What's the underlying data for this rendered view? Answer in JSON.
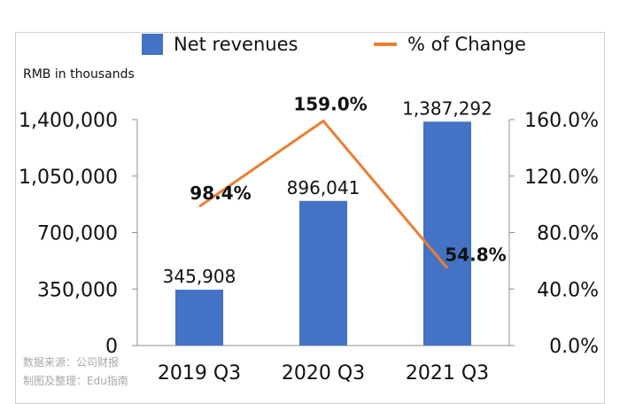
{
  "chart_data": {
    "type": "bar",
    "categories": [
      "2019 Q3",
      "2020 Q3",
      "2021 Q3"
    ],
    "series": [
      {
        "name": "Net revenues",
        "type": "bar",
        "axis": "left",
        "values": [
          345908,
          896041,
          1387292
        ],
        "labels": [
          "345,908",
          "896,041",
          "1,387,292"
        ],
        "color": "#4472C4"
      },
      {
        "name": "% of Change",
        "type": "line",
        "axis": "right",
        "values": [
          98.4,
          159.0,
          54.8
        ],
        "labels": [
          "98.4%",
          "159.0%",
          "54.8%"
        ],
        "color": "#ED7D31"
      }
    ],
    "ylabel": "RMB in thousands",
    "ylim": [
      0,
      1400000
    ],
    "yticks": [
      "0",
      "350,000",
      "700,000",
      "1,050,000",
      "1,400,000"
    ],
    "ytick_values": [
      0,
      350000,
      700000,
      1050000,
      1400000
    ],
    "y2lim": [
      0,
      160
    ],
    "y2ticks": [
      "0.0%",
      "40.0%",
      "80.0%",
      "120.0%",
      "160.0%"
    ],
    "y2tick_values": [
      0,
      40,
      80,
      120,
      160
    ],
    "grid": false,
    "legend_position": "top"
  },
  "source": {
    "line1": "数据来源：公司财报",
    "line2": "制图及整理：Edu指南"
  }
}
